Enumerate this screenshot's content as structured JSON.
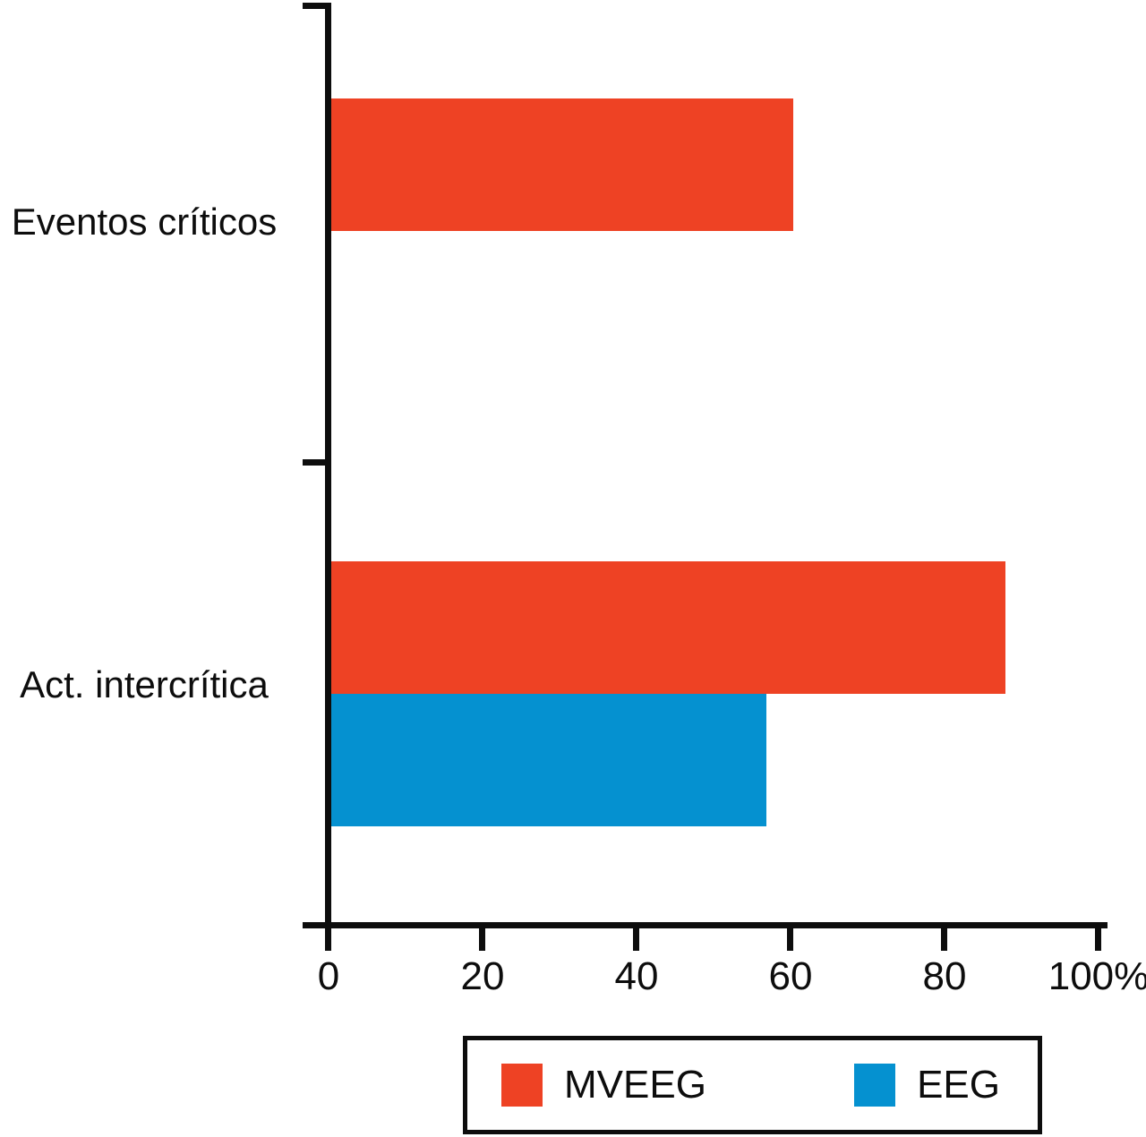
{
  "figure": {
    "background": "#ffffff",
    "axis_color": "#0d0d0d",
    "accent_red": "#ee4224",
    "accent_blue": "#0591d0"
  },
  "chart_data": {
    "type": "bar",
    "orientation": "horizontal",
    "title": "",
    "xlabel": "",
    "ylabel": "",
    "categories": [
      "Eventos críticos",
      "Act. intercrítica"
    ],
    "series": [
      {
        "name": "MVEEG",
        "color": "#ee4224",
        "values": [
          60,
          87.5
        ]
      },
      {
        "name": "EEG",
        "color": "#0591d0",
        "values": [
          null,
          56.5
        ]
      }
    ],
    "xlim": [
      0,
      100
    ],
    "x_ticks": [
      0,
      20,
      40,
      60,
      80,
      100
    ],
    "x_tick_labels": [
      "0",
      "20",
      "40",
      "60",
      "80",
      "100%"
    ],
    "grid": false,
    "legend": {
      "position": "bottom",
      "entries": [
        {
          "label": "MVEEG",
          "color": "#ee4224"
        },
        {
          "label": "EEG",
          "color": "#0591d0"
        }
      ]
    }
  }
}
